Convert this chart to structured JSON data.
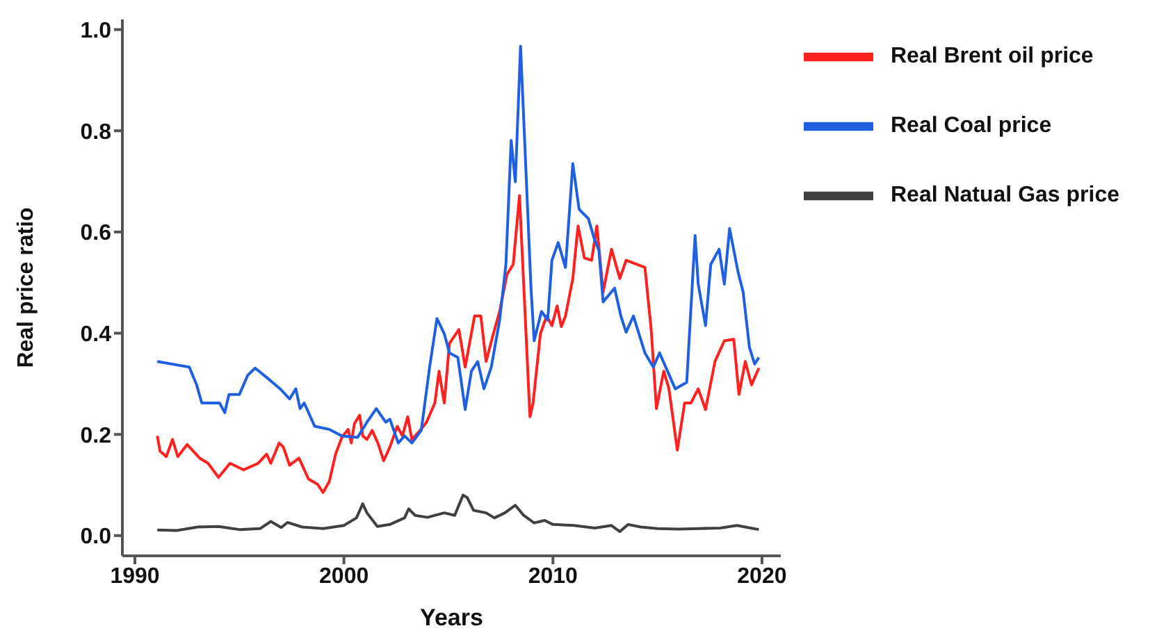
{
  "chart_data": {
    "type": "line",
    "xlabel": "Years",
    "ylabel": "Real price ratio",
    "xlim": [
      1989.4,
      2020.9
    ],
    "xticks": [
      1990,
      2000,
      2010,
      2020
    ],
    "ylim": [
      -0.04,
      1.02
    ],
    "yticks": [
      {
        "value": 0,
        "label": "0.0"
      },
      0.2,
      0.4,
      0.6,
      0.8,
      {
        "value": 1,
        "label": "1.0"
      }
    ],
    "grid": false,
    "legend": "top right",
    "marker": "none",
    "line_style": "solid",
    "series": [
      {
        "name": "Real Brent oil price",
        "color": "#ff2020",
        "x": [
          1991.07,
          1991.2,
          1991.5,
          1991.8,
          1992.05,
          1992.5,
          1993.1,
          1993.5,
          1994.0,
          1994.55,
          1995.2,
          1995.9,
          1996.3,
          1996.5,
          1996.9,
          1997.1,
          1997.4,
          1997.85,
          1998.3,
          1998.75,
          1999.0,
          1999.3,
          1999.6,
          1999.9,
          2000.2,
          2000.35,
          2000.5,
          2000.75,
          2000.9,
          2001.1,
          2001.35,
          2001.65,
          2001.9,
          2002.2,
          2002.55,
          2002.8,
          2003.05,
          2003.25,
          2003.65,
          2003.95,
          2004.35,
          2004.55,
          2004.8,
          2005.05,
          2005.5,
          2005.8,
          2006.25,
          2006.55,
          2006.8,
          2007.15,
          2007.45,
          2007.8,
          2008.1,
          2008.4,
          2008.6,
          2008.9,
          2009.05,
          2009.4,
          2009.7,
          2009.95,
          2010.2,
          2010.4,
          2010.6,
          2010.95,
          2011.2,
          2011.5,
          2011.85,
          2012.1,
          2012.4,
          2012.8,
          2013.2,
          2013.5,
          2013.9,
          2014.4,
          2014.7,
          2014.95,
          2015.3,
          2015.55,
          2015.95,
          2016.3,
          2016.6,
          2016.95,
          2017.3,
          2017.75,
          2018.2,
          2018.65,
          2018.9,
          2019.2,
          2019.5,
          2019.85
        ],
        "values": [
          0.197,
          0.167,
          0.156,
          0.19,
          0.156,
          0.18,
          0.153,
          0.143,
          0.115,
          0.143,
          0.13,
          0.143,
          0.161,
          0.143,
          0.183,
          0.175,
          0.139,
          0.153,
          0.112,
          0.101,
          0.085,
          0.107,
          0.161,
          0.194,
          0.21,
          0.183,
          0.221,
          0.238,
          0.197,
          0.19,
          0.208,
          0.18,
          0.148,
          0.175,
          0.216,
          0.197,
          0.235,
          0.19,
          0.208,
          0.224,
          0.262,
          0.325,
          0.262,
          0.38,
          0.407,
          0.333,
          0.434,
          0.434,
          0.344,
          0.399,
          0.443,
          0.516,
          0.536,
          0.672,
          0.497,
          0.235,
          0.262,
          0.399,
          0.434,
          0.415,
          0.454,
          0.413,
          0.434,
          0.508,
          0.612,
          0.549,
          0.544,
          0.612,
          0.481,
          0.566,
          0.508,
          0.544,
          0.538,
          0.53,
          0.407,
          0.251,
          0.325,
          0.29,
          0.169,
          0.262,
          0.262,
          0.29,
          0.249,
          0.344,
          0.385,
          0.388,
          0.279,
          0.344,
          0.298,
          0.331
        ]
      },
      {
        "name": "Real Natual Gas price",
        "color": "#404040",
        "x": [
          1991.07,
          1992,
          1993,
          1994,
          1995,
          1996,
          1996.5,
          1997,
          1997.3,
          1998,
          1999,
          2000,
          2000.6,
          2000.9,
          2001.1,
          2001.6,
          2002.2,
          2002.9,
          2003.1,
          2003.4,
          2004,
          2004.8,
          2005.3,
          2005.7,
          2005.9,
          2006.2,
          2006.8,
          2007.2,
          2007.7,
          2008.2,
          2008.6,
          2009.1,
          2009.6,
          2010,
          2011,
          2012,
          2012.8,
          2013.2,
          2013.6,
          2014.2,
          2015,
          2016,
          2017,
          2018,
          2018.8,
          2019.85
        ],
        "values": [
          0.011,
          0.01,
          0.017,
          0.018,
          0.012,
          0.014,
          0.028,
          0.016,
          0.026,
          0.017,
          0.014,
          0.02,
          0.035,
          0.063,
          0.045,
          0.018,
          0.022,
          0.035,
          0.053,
          0.04,
          0.036,
          0.045,
          0.04,
          0.08,
          0.075,
          0.05,
          0.045,
          0.035,
          0.045,
          0.06,
          0.04,
          0.025,
          0.03,
          0.022,
          0.02,
          0.015,
          0.02,
          0.008,
          0.022,
          0.017,
          0.014,
          0.013,
          0.014,
          0.015,
          0.02,
          0.012
        ]
      },
      {
        "name": "Real Coal price",
        "color": "#2060e0",
        "x": [
          1991.07,
          1992.6,
          1992.95,
          1993.2,
          1994.05,
          1994.3,
          1994.5,
          1995.0,
          1995.4,
          1995.75,
          1996.35,
          1996.95,
          1997.4,
          1997.7,
          1997.9,
          1998.1,
          1998.6,
          1999.3,
          1999.9,
          2000.65,
          2001.1,
          2001.55,
          2002.0,
          2002.2,
          2002.6,
          2002.9,
          2003.25,
          2003.7,
          2004.1,
          2004.45,
          2004.8,
          2005.05,
          2005.45,
          2005.8,
          2006.1,
          2006.4,
          2006.7,
          2007.05,
          2007.45,
          2007.75,
          2008.0,
          2008.2,
          2008.45,
          2008.6,
          2008.95,
          2009.1,
          2009.45,
          2009.75,
          2009.95,
          2010.25,
          2010.6,
          2010.95,
          2011.25,
          2011.7,
          2011.95,
          2012.2,
          2012.4,
          2012.95,
          2013.25,
          2013.5,
          2013.85,
          2014.4,
          2014.8,
          2015.1,
          2015.85,
          2016.4,
          2016.8,
          2016.95,
          2017.3,
          2017.55,
          2017.95,
          2018.2,
          2018.45,
          2018.85,
          2019.1,
          2019.4,
          2019.65,
          2019.85
        ],
        "values": [
          0.344,
          0.333,
          0.298,
          0.262,
          0.262,
          0.243,
          0.279,
          0.279,
          0.317,
          0.331,
          0.311,
          0.29,
          0.27,
          0.29,
          0.251,
          0.262,
          0.216,
          0.21,
          0.197,
          0.194,
          0.224,
          0.251,
          0.224,
          0.23,
          0.183,
          0.197,
          0.183,
          0.208,
          0.333,
          0.429,
          0.399,
          0.361,
          0.352,
          0.249,
          0.325,
          0.344,
          0.29,
          0.333,
          0.426,
          0.536,
          0.781,
          0.699,
          0.967,
          0.825,
          0.489,
          0.385,
          0.443,
          0.426,
          0.544,
          0.579,
          0.53,
          0.735,
          0.645,
          0.626,
          0.59,
          0.563,
          0.462,
          0.489,
          0.434,
          0.402,
          0.434,
          0.361,
          0.333,
          0.361,
          0.29,
          0.303,
          0.593,
          0.497,
          0.415,
          0.536,
          0.566,
          0.497,
          0.607,
          0.522,
          0.481,
          0.372,
          0.339,
          0.352
        ]
      }
    ]
  }
}
